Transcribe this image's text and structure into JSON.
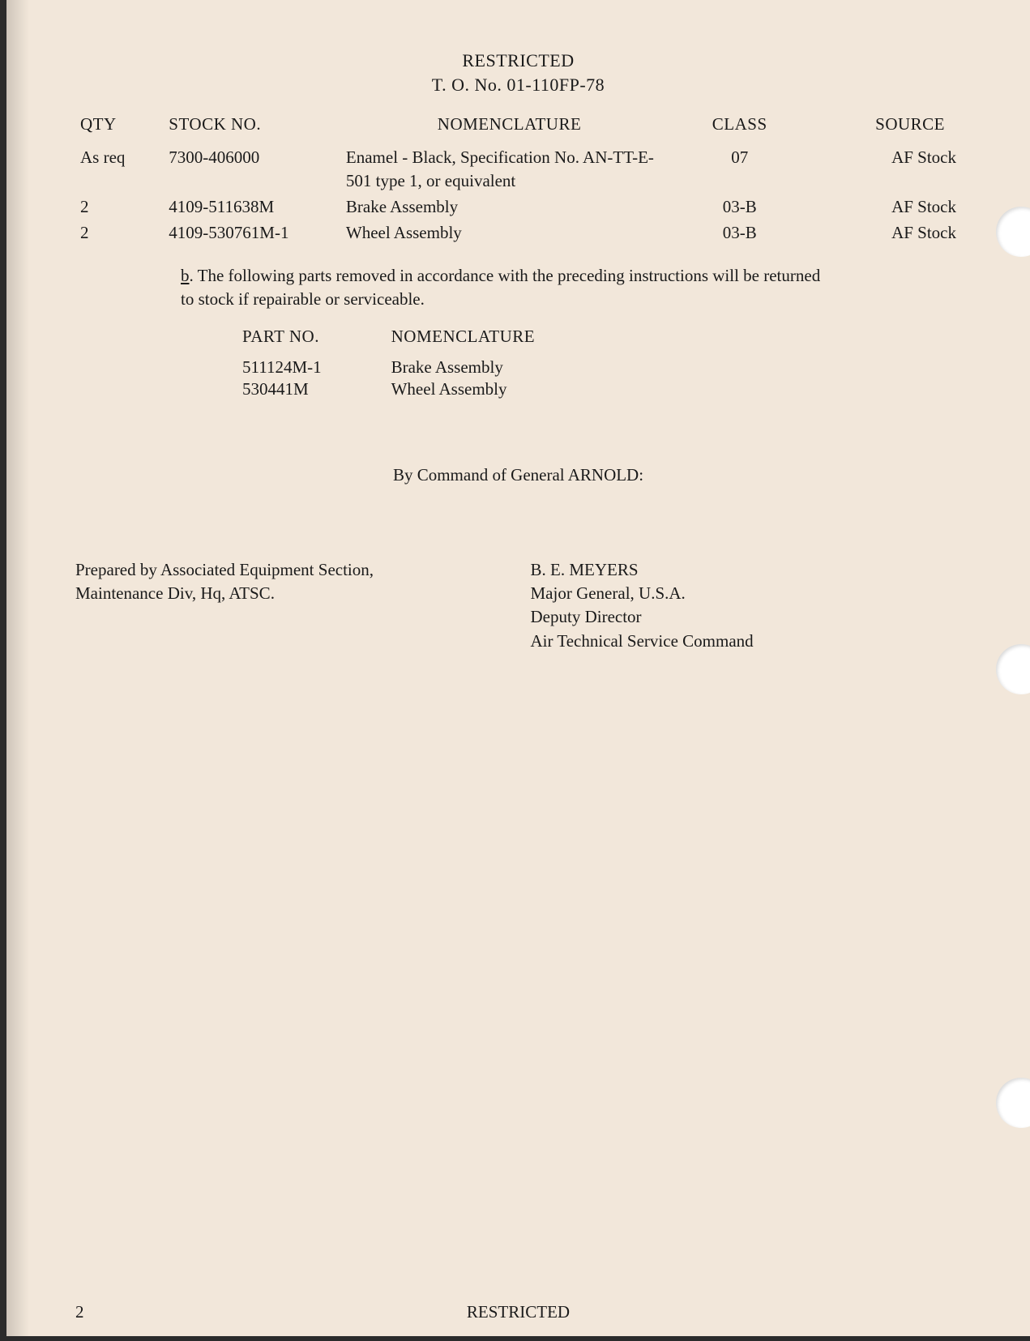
{
  "colors": {
    "paper": "#f2e7da",
    "ink": "#1a1a1a",
    "edge": "#2b2b2b",
    "punch": "#ffffff"
  },
  "typography": {
    "font_family": "Times New Roman, Georgia, serif",
    "body_fontsize_pt": 16,
    "line_height": 1.35
  },
  "header": {
    "line1": "RESTRICTED",
    "line2": "T. O. No. 01-110FP-78"
  },
  "table1": {
    "headers": {
      "qty": "QTY",
      "stock": "STOCK NO.",
      "nom": "NOMENCLATURE",
      "class": "CLASS",
      "source": "SOURCE"
    },
    "rows": [
      {
        "qty": "As req",
        "stock": "7300-406000",
        "nom": "Enamel - Black, Specification No. AN-TT-E- 501 type 1, or equivalent",
        "class": "07",
        "source": "AF Stock"
      },
      {
        "qty": "2",
        "stock": "4109-511638M",
        "nom": "Brake Assembly",
        "class": "03-B",
        "source": "AF Stock"
      },
      {
        "qty": "2",
        "stock": "4109-530761M-1",
        "nom": "Wheel Assembly",
        "class": "03-B",
        "source": "AF Stock"
      }
    ]
  },
  "note": {
    "prefix": "b",
    "text": ".  The following parts removed in accordance with the preceding instructions will be returned to stock if repairable or serviceable."
  },
  "table2": {
    "headers": {
      "part": "PART NO.",
      "nom": "NOMENCLATURE"
    },
    "rows": [
      {
        "part": "511124M-1",
        "nom": "Brake Assembly"
      },
      {
        "part": "530441M",
        "nom": "Wheel Assembly"
      }
    ]
  },
  "command_line": "By Command of General ARNOLD:",
  "prepared_by": {
    "line1": "Prepared by Associated Equipment Section,",
    "line2": "Maintenance Div, Hq, ATSC."
  },
  "signature": {
    "name": "B. E. MEYERS",
    "rank": "Major General, U.S.A.",
    "title": "Deputy Director",
    "org": "Air Technical Service Command"
  },
  "footer": {
    "page_number": "2",
    "classification": "RESTRICTED"
  }
}
